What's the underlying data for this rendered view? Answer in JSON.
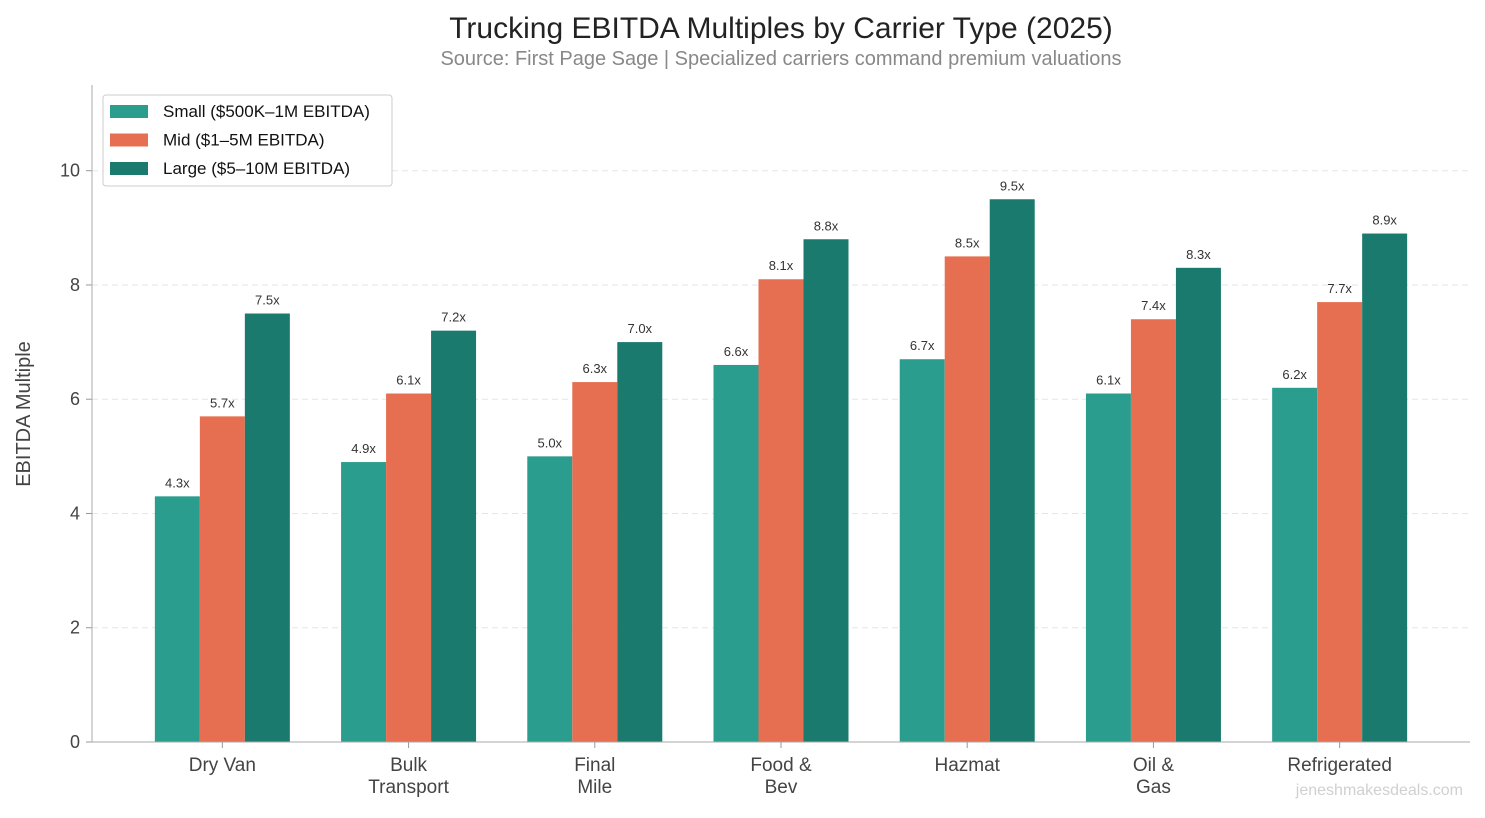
{
  "chart_data": {
    "type": "bar",
    "title": "Trucking EBITDA Multiples by Carrier Type (2025)",
    "subtitle": "Source: First Page Sage | Specialized carriers command premium valuations",
    "xlabel": "",
    "ylabel": "EBITDA Multiple",
    "ylim": [
      0,
      11.5
    ],
    "yticks": [
      0,
      2,
      4,
      6,
      8,
      10
    ],
    "grid": "horizontal dashed",
    "legend_position": "top-left",
    "categories": [
      [
        "Dry Van"
      ],
      [
        "Bulk",
        "Transport"
      ],
      [
        "Final",
        "Mile"
      ],
      [
        "Food &",
        "Bev"
      ],
      [
        "Hazmat"
      ],
      [
        "Oil &",
        "Gas"
      ],
      [
        "Refrigerated"
      ]
    ],
    "series": [
      {
        "name": "Small ($500K–1M EBITDA)",
        "color": "#2a9d8f",
        "values": [
          4.3,
          4.9,
          5.0,
          6.6,
          6.7,
          6.1,
          6.2
        ]
      },
      {
        "name": "Mid ($1–5M EBITDA)",
        "color": "#e76f51",
        "values": [
          5.7,
          6.1,
          6.3,
          8.1,
          8.5,
          7.4,
          7.7
        ]
      },
      {
        "name": "Large ($5–10M EBITDA)",
        "color": "#1a7a6e",
        "values": [
          7.5,
          7.2,
          7.0,
          8.8,
          9.5,
          8.3,
          8.9
        ]
      }
    ],
    "value_label_suffix": "x"
  },
  "watermark": "jeneshmakesdeals.com"
}
